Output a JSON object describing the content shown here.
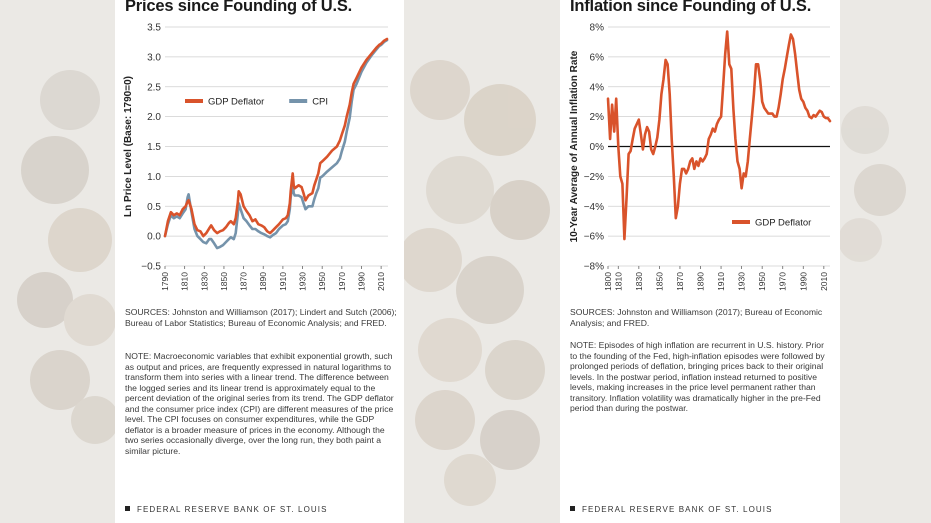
{
  "left_panel": {
    "title": "Prices since Founding of U.S.",
    "sources": "SOURCES: Johnston and Williamson (2017); Lindert and Sutch (2006); Bureau of Labor Statistics; Bureau of Economic Analysis; and FRED.",
    "note": "NOTE: Macroeconomic variables that exhibit exponential growth, such as output and prices, are frequently expressed in natural logarithms to transform them into series with a linear trend. The difference between the logged series and its linear trend is approximately equal to the percent deviation of the original series from its trend. The GDP deflator and the consumer price index (CPI) are different measures of the price level. The CPI focuses on consumer expenditures, while the GDP deflator is a broader measure of prices in the economy. Although the two series occasionally diverge, over the long run, they both paint a similar picture.",
    "footer": "FEDERAL RESERVE BANK OF ST. LOUIS"
  },
  "right_panel": {
    "title": "Inflation since Founding of U.S.",
    "sources": "SOURCES: Johnston and Williamson (2017); Bureau of Economic Analysis; and FRED.",
    "note": "NOTE: Episodes of high inflation are recurrent in U.S. history. Prior to the founding of the Fed, high-inflation episodes were followed by prolonged periods of deflation, bringing prices back to their original levels. In the postwar period, inflation instead returned to positive levels, making increases in the price level permanent rather than transitory. Inflation volatility was dramatically higher in the pre-Fed period than during the postwar.",
    "footer": "FEDERAL RESERVE BANK OF ST. LOUIS"
  },
  "colors": {
    "gdp": "#d9532b",
    "cpi": "#7593ab",
    "grid": "#cfcfcf",
    "text": "#333333"
  },
  "chart_data": [
    {
      "type": "line",
      "ylabel": "Ln Price Level (Base: 1790=0)",
      "ylim": [
        -0.5,
        3.5
      ],
      "yticks": [
        -0.5,
        0.0,
        0.5,
        1.0,
        1.5,
        2.0,
        2.5,
        3.0,
        3.5
      ],
      "ytick_labels": [
        "−0.5",
        "0.0",
        "0.5",
        "1.0",
        "1.5",
        "2.0",
        "2.5",
        "3.0",
        "3.5"
      ],
      "xlim": [
        1790,
        2017
      ],
      "xticks": [
        1790,
        1810,
        1830,
        1850,
        1870,
        1890,
        1910,
        1930,
        1950,
        1970,
        1990,
        2010
      ],
      "grid": "horizontal",
      "legend_position": "upper-left",
      "series": [
        {
          "name": "GDP Deflator",
          "color": "#d9532b",
          "x": [
            1790,
            1793,
            1796,
            1799,
            1802,
            1805,
            1808,
            1811,
            1813,
            1814,
            1817,
            1820,
            1823,
            1826,
            1829,
            1832,
            1835,
            1837,
            1840,
            1843,
            1846,
            1849,
            1852,
            1855,
            1857,
            1860,
            1862,
            1864,
            1865,
            1867,
            1870,
            1873,
            1876,
            1879,
            1882,
            1885,
            1888,
            1891,
            1894,
            1897,
            1900,
            1903,
            1906,
            1910,
            1913,
            1915,
            1917,
            1918,
            1920,
            1921,
            1922,
            1926,
            1929,
            1931,
            1933,
            1936,
            1940,
            1942,
            1944,
            1946,
            1948,
            1950,
            1955,
            1960,
            1965,
            1968,
            1970,
            1973,
            1975,
            1978,
            1980,
            1982,
            1985,
            1990,
            1995,
            2000,
            2005,
            2008,
            2010,
            2013,
            2016
          ],
          "values": [
            0.0,
            0.25,
            0.4,
            0.35,
            0.38,
            0.35,
            0.45,
            0.5,
            0.58,
            0.6,
            0.45,
            0.2,
            0.1,
            0.08,
            0.0,
            0.05,
            0.13,
            0.18,
            0.1,
            0.05,
            0.08,
            0.1,
            0.15,
            0.22,
            0.25,
            0.2,
            0.3,
            0.55,
            0.75,
            0.7,
            0.5,
            0.42,
            0.35,
            0.25,
            0.28,
            0.2,
            0.18,
            0.15,
            0.08,
            0.05,
            0.1,
            0.15,
            0.2,
            0.28,
            0.3,
            0.35,
            0.55,
            0.75,
            1.05,
            0.85,
            0.8,
            0.85,
            0.82,
            0.72,
            0.6,
            0.68,
            0.72,
            0.85,
            0.95,
            1.05,
            1.22,
            1.25,
            1.33,
            1.43,
            1.5,
            1.6,
            1.7,
            1.85,
            2.0,
            2.2,
            2.4,
            2.55,
            2.65,
            2.82,
            2.95,
            3.05,
            3.15,
            3.2,
            3.22,
            3.27,
            3.3
          ]
        },
        {
          "name": "CPI",
          "color": "#7593ab",
          "x": [
            1790,
            1793,
            1796,
            1799,
            1802,
            1805,
            1808,
            1811,
            1813,
            1814,
            1817,
            1820,
            1823,
            1826,
            1829,
            1832,
            1835,
            1837,
            1840,
            1843,
            1846,
            1849,
            1852,
            1855,
            1857,
            1860,
            1862,
            1864,
            1865,
            1867,
            1870,
            1873,
            1876,
            1879,
            1882,
            1885,
            1888,
            1891,
            1894,
            1897,
            1900,
            1903,
            1906,
            1910,
            1913,
            1915,
            1917,
            1918,
            1920,
            1921,
            1922,
            1926,
            1929,
            1931,
            1933,
            1936,
            1940,
            1942,
            1944,
            1946,
            1948,
            1950,
            1955,
            1960,
            1965,
            1968,
            1970,
            1973,
            1975,
            1978,
            1980,
            1982,
            1985,
            1990,
            1995,
            2000,
            2005,
            2008,
            2010,
            2013,
            2016
          ],
          "values": [
            0.0,
            0.2,
            0.35,
            0.3,
            0.33,
            0.3,
            0.38,
            0.45,
            0.65,
            0.7,
            0.4,
            0.12,
            0.0,
            -0.05,
            -0.1,
            -0.12,
            -0.05,
            -0.05,
            -0.12,
            -0.2,
            -0.18,
            -0.15,
            -0.1,
            -0.05,
            -0.02,
            -0.05,
            0.05,
            0.35,
            0.55,
            0.45,
            0.3,
            0.25,
            0.18,
            0.12,
            0.12,
            0.08,
            0.05,
            0.03,
            0.0,
            -0.02,
            0.02,
            0.05,
            0.12,
            0.18,
            0.2,
            0.25,
            0.45,
            0.65,
            0.9,
            0.72,
            0.68,
            0.68,
            0.65,
            0.55,
            0.45,
            0.5,
            0.5,
            0.62,
            0.72,
            0.8,
            0.98,
            1.0,
            1.08,
            1.15,
            1.22,
            1.3,
            1.42,
            1.58,
            1.75,
            1.98,
            2.25,
            2.45,
            2.55,
            2.75,
            2.9,
            3.02,
            3.12,
            3.18,
            3.2,
            3.25,
            3.28
          ]
        }
      ]
    },
    {
      "type": "line",
      "ylabel": "10-Year Average of Annual Inflation Rate",
      "ylim": [
        -8,
        8
      ],
      "yticks": [
        -8,
        -6,
        -4,
        -2,
        0,
        2,
        4,
        6,
        8
      ],
      "ytick_labels": [
        "−8%",
        "−6%",
        "−4%",
        "−2%",
        "0%",
        "2%",
        "4%",
        "6%",
        "8%"
      ],
      "xlim": [
        1800,
        2016
      ],
      "xticks": [
        1800,
        1810,
        1830,
        1850,
        1870,
        1890,
        1910,
        1930,
        1950,
        1970,
        1990,
        2010
      ],
      "grid": "horizontal",
      "legend_position": "lower-right",
      "series": [
        {
          "name": "GDP Deflator",
          "color": "#d9532b",
          "x": [
            1800,
            1802,
            1804,
            1806,
            1808,
            1810,
            1812,
            1814,
            1816,
            1818,
            1820,
            1822,
            1824,
            1826,
            1828,
            1830,
            1832,
            1834,
            1836,
            1838,
            1840,
            1842,
            1844,
            1846,
            1848,
            1850,
            1852,
            1854,
            1856,
            1858,
            1860,
            1862,
            1864,
            1866,
            1868,
            1870,
            1872,
            1874,
            1876,
            1878,
            1880,
            1882,
            1884,
            1886,
            1888,
            1890,
            1892,
            1894,
            1896,
            1898,
            1900,
            1902,
            1904,
            1906,
            1908,
            1910,
            1912,
            1914,
            1916,
            1918,
            1920,
            1922,
            1924,
            1926,
            1928,
            1930,
            1932,
            1934,
            1936,
            1938,
            1940,
            1942,
            1944,
            1946,
            1948,
            1950,
            1952,
            1954,
            1956,
            1958,
            1960,
            1962,
            1964,
            1966,
            1968,
            1970,
            1972,
            1974,
            1976,
            1978,
            1980,
            1982,
            1984,
            1986,
            1988,
            1990,
            1992,
            1994,
            1996,
            1998,
            2000,
            2002,
            2004,
            2006,
            2008,
            2010,
            2012,
            2014,
            2016
          ],
          "values": [
            3.2,
            0.5,
            2.8,
            1.0,
            3.2,
            0.0,
            -2.0,
            -2.5,
            -6.2,
            -3.5,
            -0.5,
            -0.3,
            0.5,
            1.2,
            1.5,
            1.8,
            0.8,
            -0.2,
            0.8,
            1.3,
            1.0,
            -0.2,
            -0.5,
            0.0,
            0.6,
            1.8,
            3.5,
            4.5,
            5.8,
            5.5,
            3.5,
            0.5,
            -2.0,
            -4.8,
            -4.0,
            -2.5,
            -1.5,
            -1.5,
            -1.8,
            -1.5,
            -1.0,
            -0.8,
            -1.5,
            -1.0,
            -1.3,
            -0.8,
            -1.0,
            -0.8,
            -0.5,
            0.5,
            0.8,
            1.2,
            1.0,
            1.5,
            1.8,
            2.0,
            4.0,
            6.2,
            7.7,
            5.5,
            5.2,
            2.5,
            0.5,
            -1.0,
            -1.5,
            -2.8,
            -1.8,
            -2.0,
            -1.0,
            0.5,
            2.0,
            3.5,
            5.5,
            5.5,
            4.5,
            3.0,
            2.6,
            2.4,
            2.2,
            2.2,
            2.2,
            2.0,
            2.0,
            2.6,
            3.5,
            4.5,
            5.2,
            6.0,
            6.8,
            7.5,
            7.2,
            6.2,
            5.0,
            3.8,
            3.2,
            3.0,
            2.6,
            2.4,
            2.0,
            1.9,
            2.1,
            2.0,
            2.2,
            2.4,
            2.3,
            2.0,
            1.9,
            1.9,
            1.7
          ]
        }
      ]
    }
  ]
}
